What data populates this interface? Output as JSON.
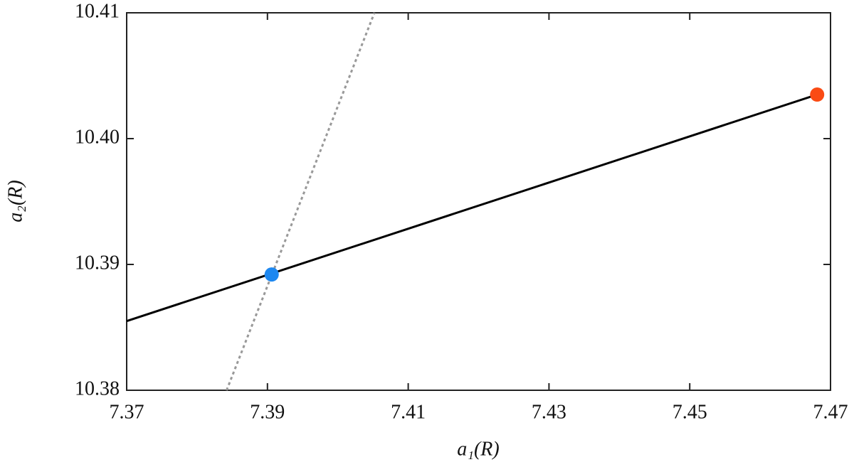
{
  "chart_data": {
    "type": "line",
    "xlabel": "a₁(R)",
    "ylabel": "a₂(R)",
    "xlim": [
      7.37,
      7.47
    ],
    "xticks": [
      7.37,
      7.39,
      7.41,
      7.43,
      7.45,
      7.47
    ],
    "ylim": [
      10.38,
      10.41
    ],
    "yticks": [
      10.38,
      10.39,
      {
        "value": 10.4,
        "label": "10.40"
      },
      10.41
    ],
    "series": [
      {
        "color": "#000000",
        "style": "solid",
        "x": [
          7.37,
          7.4681
        ],
        "values": [
          10.3855,
          10.4035
        ]
      },
      {
        "color": "#999999",
        "style": "dotted",
        "x": [
          7.3842,
          7.4052
        ],
        "values": [
          10.38,
          10.41
        ]
      },
      {
        "color": "#1e88f0",
        "style": "point",
        "x": [
          7.3906
        ],
        "values": [
          10.3892
        ]
      },
      {
        "color": "#fa4b14",
        "style": "point",
        "x": [
          7.4681
        ],
        "values": [
          10.4035
        ]
      }
    ]
  }
}
